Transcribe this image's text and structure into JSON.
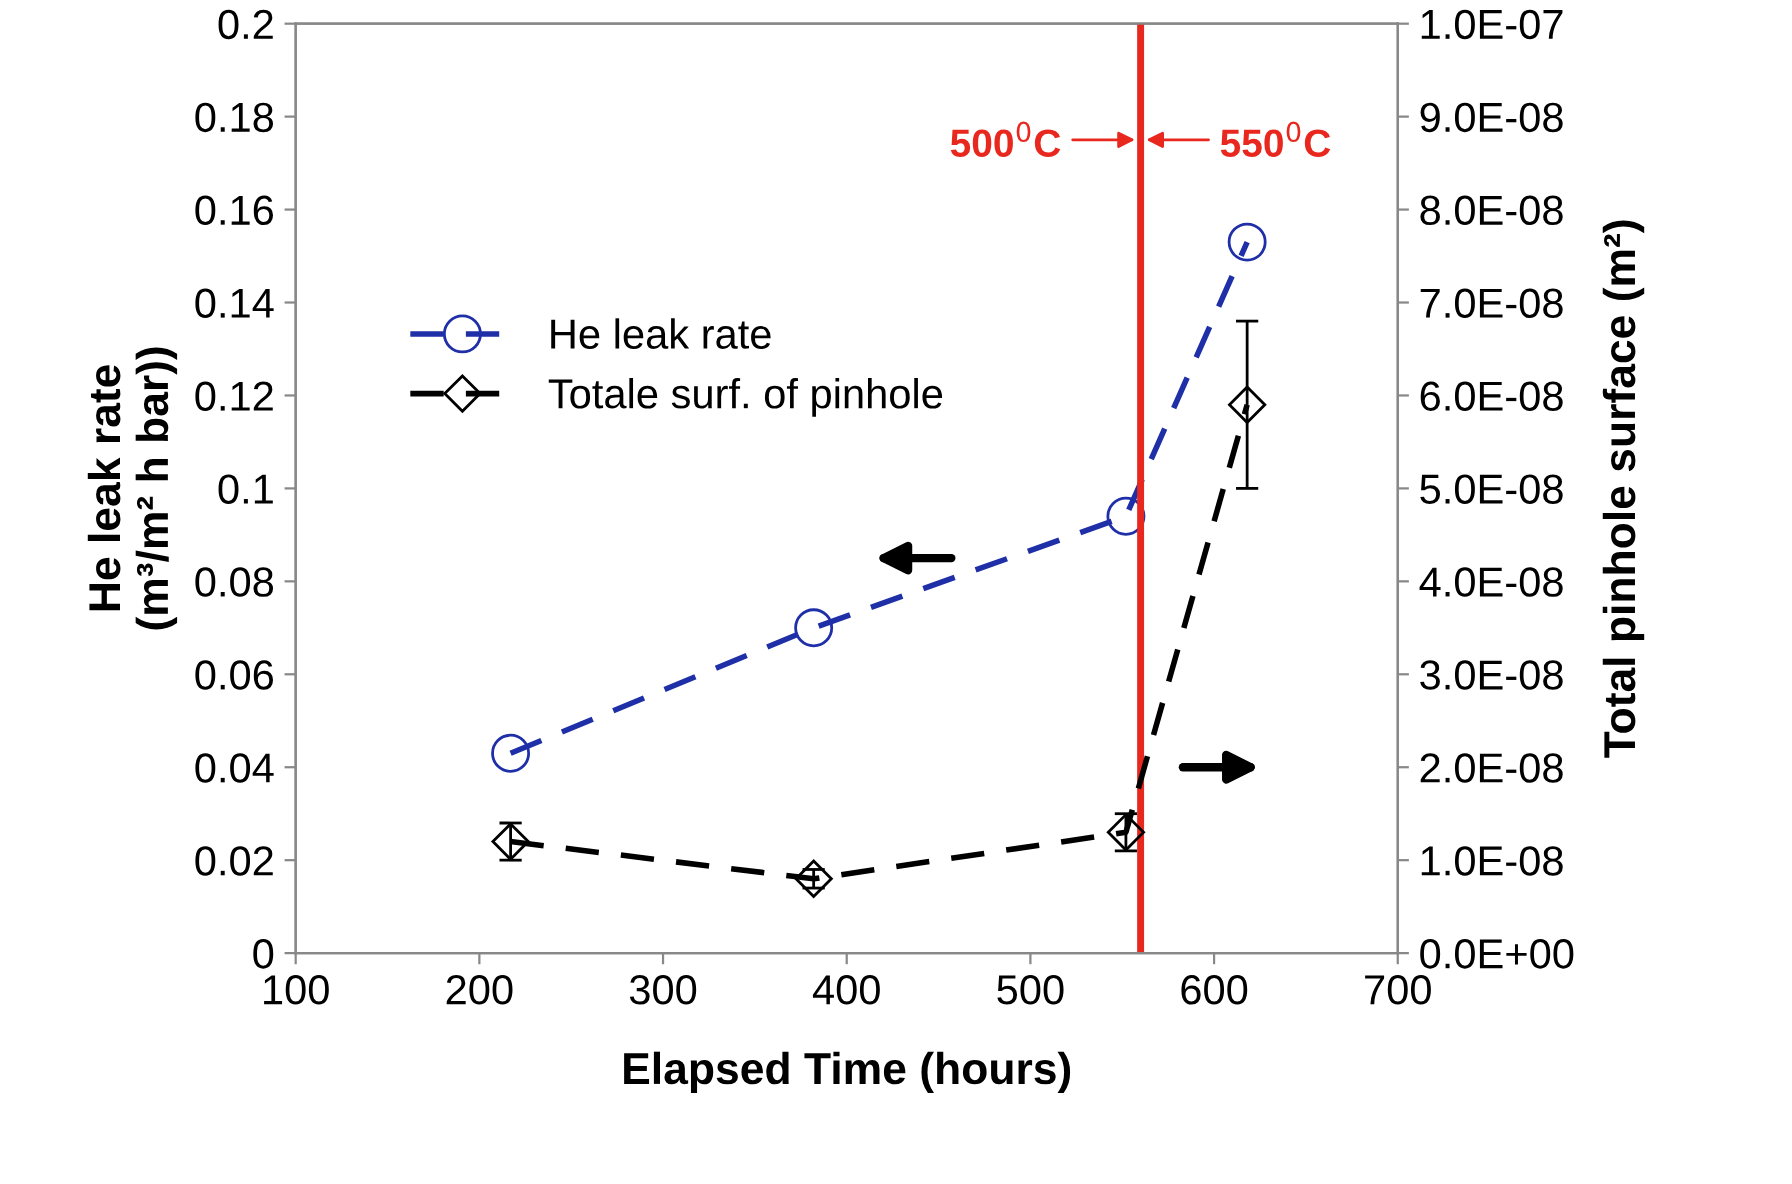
{
  "chart_data": {
    "type": "line",
    "xlabel": "Elapsed Time (hours)",
    "ylabel": "He leak rate\n(m³/m² h bar))",
    "y2label": "Total pinhole surface (m²)",
    "xlim": [
      100,
      700
    ],
    "xticks": [
      100,
      200,
      300,
      400,
      500,
      600,
      700
    ],
    "ylim": [
      0,
      0.2
    ],
    "yticks": [
      0,
      0.02,
      0.04,
      0.06,
      0.08,
      0.1,
      0.12,
      0.14,
      0.16,
      0.18,
      0.2
    ],
    "y2lim": [
      0,
      1e-07
    ],
    "y2ticks": [
      {
        "value": 0,
        "label": "0.0E+00"
      },
      {
        "value": 1e-08,
        "label": "1.0E-08"
      },
      {
        "value": 2e-08,
        "label": "2.0E-08"
      },
      {
        "value": 3e-08,
        "label": "3.0E-08"
      },
      {
        "value": 4e-08,
        "label": "4.0E-08"
      },
      {
        "value": 5e-08,
        "label": "5.0E-08"
      },
      {
        "value": 6e-08,
        "label": "6.0E-08"
      },
      {
        "value": 7e-08,
        "label": "7.0E-08"
      },
      {
        "value": 8e-08,
        "label": "8.0E-08"
      },
      {
        "value": 9e-08,
        "label": "9.0E-08"
      },
      {
        "value": 1e-07,
        "label": "1.0E-07"
      }
    ],
    "x": [
      217,
      382,
      552,
      618
    ],
    "series": [
      {
        "name": "He leak rate",
        "color": "#1f2fa8",
        "marker": "circle",
        "line_style": "dashed",
        "values": [
          0.043,
          0.07,
          0.094,
          0.153
        ]
      },
      {
        "name": "Totale surf. of pinhole",
        "color": "#000000",
        "marker": "diamond",
        "line_style": "dashed",
        "axis": "y2",
        "values": [
          1.2e-08,
          8e-09,
          1.3e-08,
          5.9e-08
        ],
        "errors": [
          2e-09,
          1e-09,
          2e-09,
          [
            5e-08,
            6.8e-08
          ]
        ]
      }
    ],
    "ref_lines": [
      {
        "axis": "x",
        "value": 560,
        "color": "#e8281e",
        "line_style": "solid"
      }
    ],
    "annotations": [
      {
        "text": "500$^{0}$C",
        "x": 560,
        "y": 0.175
      },
      {
        "text": "550$^{0}$C",
        "x": 560,
        "y": 0.175
      }
    ],
    "legend": "left",
    "grid": false
  }
}
